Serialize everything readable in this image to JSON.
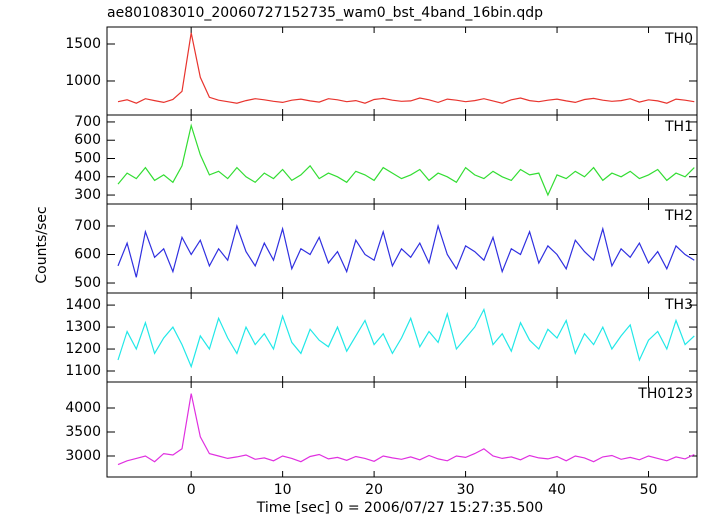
{
  "title": "ae801083010_20060727152735_wam0_bst_4band_16bin.qdp",
  "x_label": "Time [sec] 0 = 2006/07/27 15:27:35.500",
  "y_label": "Counts/sec",
  "chart_data": [
    {
      "type": "line",
      "xlim": [
        -9.2,
        55.3
      ],
      "xticks": [
        0,
        10,
        20,
        30,
        40,
        50
      ],
      "ylim": [
        540,
        1730
      ],
      "yticks": [
        1000,
        1500
      ],
      "x": [
        -8,
        -7,
        -6,
        -5,
        -4,
        -3,
        -2,
        -1,
        0,
        1,
        2,
        3,
        4,
        5,
        6,
        7,
        8,
        9,
        10,
        11,
        12,
        13,
        14,
        15,
        16,
        17,
        18,
        19,
        20,
        21,
        22,
        23,
        24,
        25,
        26,
        27,
        28,
        29,
        30,
        31,
        32,
        33,
        34,
        35,
        36,
        37,
        38,
        39,
        40,
        41,
        42,
        43,
        44,
        45,
        46,
        47,
        48,
        49,
        50,
        51,
        52,
        53,
        54,
        55
      ],
      "series": [
        {
          "name": "TH0",
          "color": "#e8342e",
          "values": [
            720,
            745,
            700,
            760,
            735,
            710,
            750,
            860,
            1650,
            1050,
            780,
            740,
            720,
            700,
            735,
            760,
            745,
            725,
            710,
            740,
            755,
            730,
            715,
            760,
            745,
            720,
            735,
            700,
            750,
            765,
            740,
            725,
            730,
            770,
            745,
            710,
            755,
            740,
            720,
            735,
            760,
            730,
            700,
            745,
            770,
            735,
            720,
            740,
            755,
            730,
            710,
            750,
            765,
            740,
            725,
            735,
            760,
            715,
            745,
            730,
            700,
            755,
            740,
            720
          ]
        }
      ]
    },
    {
      "type": "line",
      "xlim": [
        -9.2,
        55.3
      ],
      "xticks": [
        0,
        10,
        20,
        30,
        40,
        50
      ],
      "ylim": [
        251,
        738
      ],
      "yticks": [
        300,
        400,
        500,
        600,
        700
      ],
      "x": [
        -8,
        -7,
        -6,
        -5,
        -4,
        -3,
        -2,
        -1,
        0,
        1,
        2,
        3,
        4,
        5,
        6,
        7,
        8,
        9,
        10,
        11,
        12,
        13,
        14,
        15,
        16,
        17,
        18,
        19,
        20,
        21,
        22,
        23,
        24,
        25,
        26,
        27,
        28,
        29,
        30,
        31,
        32,
        33,
        34,
        35,
        36,
        37,
        38,
        39,
        40,
        41,
        42,
        43,
        44,
        45,
        46,
        47,
        48,
        49,
        50,
        51,
        52,
        53,
        54,
        55
      ],
      "series": [
        {
          "name": "TH1",
          "color": "#33dd33",
          "values": [
            360,
            420,
            390,
            450,
            380,
            410,
            370,
            460,
            680,
            520,
            410,
            430,
            390,
            450,
            400,
            370,
            420,
            390,
            440,
            380,
            410,
            460,
            390,
            420,
            400,
            370,
            430,
            410,
            380,
            450,
            420,
            390,
            410,
            440,
            380,
            420,
            400,
            370,
            450,
            410,
            390,
            430,
            400,
            380,
            440,
            410,
            420,
            300,
            410,
            390,
            430,
            400,
            450,
            380,
            420,
            400,
            430,
            390,
            410,
            440,
            380,
            420,
            400,
            450
          ]
        }
      ]
    },
    {
      "type": "line",
      "xlim": [
        -9.2,
        55.3
      ],
      "xticks": [
        0,
        10,
        20,
        30,
        40,
        50
      ],
      "ylim": [
        465,
        777
      ],
      "yticks": [
        500,
        600,
        700
      ],
      "x": [
        -8,
        -7,
        -6,
        -5,
        -4,
        -3,
        -2,
        -1,
        0,
        1,
        2,
        3,
        4,
        5,
        6,
        7,
        8,
        9,
        10,
        11,
        12,
        13,
        14,
        15,
        16,
        17,
        18,
        19,
        20,
        21,
        22,
        23,
        24,
        25,
        26,
        27,
        28,
        29,
        30,
        31,
        32,
        33,
        34,
        35,
        36,
        37,
        38,
        39,
        40,
        41,
        42,
        43,
        44,
        45,
        46,
        47,
        48,
        49,
        50,
        51,
        52,
        53,
        54,
        55
      ],
      "series": [
        {
          "name": "TH2",
          "color": "#3030e0",
          "values": [
            560,
            640,
            520,
            680,
            590,
            620,
            540,
            660,
            600,
            650,
            560,
            620,
            580,
            700,
            610,
            560,
            640,
            580,
            690,
            550,
            620,
            600,
            660,
            570,
            610,
            540,
            650,
            600,
            580,
            680,
            560,
            620,
            590,
            640,
            570,
            700,
            600,
            550,
            630,
            610,
            580,
            660,
            540,
            620,
            600,
            680,
            570,
            630,
            600,
            550,
            650,
            610,
            580,
            690,
            560,
            620,
            590,
            640,
            570,
            610,
            550,
            630,
            600,
            580
          ]
        }
      ]
    },
    {
      "type": "line",
      "xlim": [
        -9.2,
        55.3
      ],
      "xticks": [
        0,
        10,
        20,
        30,
        40,
        50
      ],
      "ylim": [
        1050,
        1455
      ],
      "yticks": [
        1100,
        1200,
        1300,
        1400
      ],
      "x": [
        -8,
        -7,
        -6,
        -5,
        -4,
        -3,
        -2,
        -1,
        0,
        1,
        2,
        3,
        4,
        5,
        6,
        7,
        8,
        9,
        10,
        11,
        12,
        13,
        14,
        15,
        16,
        17,
        18,
        19,
        20,
        21,
        22,
        23,
        24,
        25,
        26,
        27,
        28,
        29,
        30,
        31,
        32,
        33,
        34,
        35,
        36,
        37,
        38,
        39,
        40,
        41,
        42,
        43,
        44,
        45,
        46,
        47,
        48,
        49,
        50,
        51,
        52,
        53,
        54,
        55
      ],
      "series": [
        {
          "name": "TH3",
          "color": "#22e8e8",
          "values": [
            1150,
            1280,
            1200,
            1320,
            1180,
            1250,
            1300,
            1220,
            1120,
            1260,
            1200,
            1340,
            1250,
            1180,
            1300,
            1220,
            1270,
            1200,
            1350,
            1230,
            1180,
            1290,
            1240,
            1210,
            1300,
            1190,
            1260,
            1330,
            1220,
            1270,
            1180,
            1250,
            1340,
            1210,
            1280,
            1230,
            1360,
            1200,
            1250,
            1300,
            1380,
            1220,
            1270,
            1190,
            1320,
            1240,
            1200,
            1290,
            1250,
            1330,
            1180,
            1270,
            1220,
            1300,
            1200,
            1260,
            1310,
            1150,
            1240,
            1280,
            1200,
            1330,
            1220,
            1260
          ]
        }
      ]
    },
    {
      "type": "line",
      "xlim": [
        -9.2,
        55.3
      ],
      "xticks": [
        0,
        10,
        20,
        30,
        40,
        50
      ],
      "ylim": [
        2562,
        4542
      ],
      "yticks": [
        3000,
        3500,
        4000
      ],
      "x": [
        -8,
        -7,
        -6,
        -5,
        -4,
        -3,
        -2,
        -1,
        0,
        1,
        2,
        3,
        4,
        5,
        6,
        7,
        8,
        9,
        10,
        11,
        12,
        13,
        14,
        15,
        16,
        17,
        18,
        19,
        20,
        21,
        22,
        23,
        24,
        25,
        26,
        27,
        28,
        29,
        30,
        31,
        32,
        33,
        34,
        35,
        36,
        37,
        38,
        39,
        40,
        41,
        42,
        43,
        44,
        45,
        46,
        47,
        48,
        49,
        50,
        51,
        52,
        53,
        54,
        55
      ],
      "series": [
        {
          "name": "TH0123",
          "color": "#e030e0",
          "values": [
            2820,
            2900,
            2950,
            3000,
            2880,
            3050,
            3020,
            3150,
            4300,
            3400,
            3050,
            3000,
            2950,
            2980,
            3020,
            2930,
            2960,
            2900,
            3000,
            2950,
            2880,
            2990,
            3030,
            2940,
            2970,
            2910,
            2990,
            2950,
            2890,
            3000,
            2960,
            2930,
            2980,
            2920,
            3010,
            2940,
            2900,
            3000,
            2970,
            3050,
            3150,
            3000,
            2950,
            2980,
            2920,
            3010,
            2960,
            2940,
            2990,
            2900,
            3000,
            2960,
            2880,
            2980,
            3010,
            2930,
            2970,
            2920,
            3000,
            2950,
            2900,
            2980,
            2940,
            3030
          ]
        }
      ]
    }
  ]
}
